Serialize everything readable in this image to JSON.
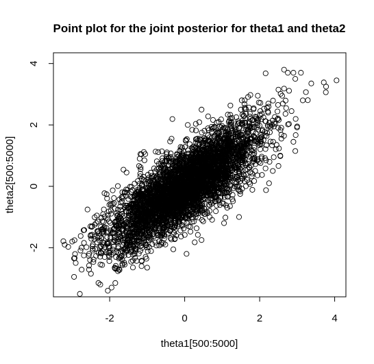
{
  "chart_data": {
    "type": "scatter",
    "title": "Point plot for the joint posterior for theta1 and theta2",
    "xlabel": "theta1[500:5000]",
    "ylabel": "theta2[500:5000]",
    "xlim": [
      -3.5,
      4.3
    ],
    "ylim": [
      -3.6,
      4.35
    ],
    "x_ticks": [
      -2,
      0,
      2,
      4
    ],
    "y_ticks": [
      -2,
      0,
      2,
      4
    ],
    "x_tick_labels": [
      "-2",
      "0",
      "2",
      "4"
    ],
    "y_tick_labels": [
      "-2",
      "0",
      "2",
      "4"
    ],
    "grid": false,
    "marker": "open-circle",
    "n_points": 4501,
    "correlation": 0.8,
    "theta1_mean": 0.0,
    "theta2_mean": 0.0,
    "theta1_sd": 1.0,
    "theta2_sd": 1.0,
    "points": [
      [
        4.05,
        3.45
      ],
      [
        2.9,
        3.7
      ],
      [
        3.1,
        3.7
      ],
      [
        2.65,
        3.8
      ],
      [
        2.75,
        3.7
      ],
      [
        2.95,
        3.5
      ],
      [
        2.5,
        3.15
      ],
      [
        2.6,
        2.95
      ],
      [
        3.15,
        2.8
      ],
      [
        2.85,
        2.45
      ],
      [
        3.0,
        1.95
      ],
      [
        2.9,
        1.45
      ],
      [
        2.95,
        1.15
      ],
      [
        2.45,
        1.35
      ],
      [
        1.95,
        2.95
      ],
      [
        1.6,
        2.8
      ],
      [
        1.5,
        2.5
      ],
      [
        -3.2,
        -1.9
      ],
      [
        -3.0,
        -1.8
      ],
      [
        -2.95,
        -2.35
      ],
      [
        -2.75,
        -2.0
      ],
      [
        -2.55,
        -2.2
      ],
      [
        -2.95,
        -2.95
      ],
      [
        -2.3,
        -3.15
      ],
      [
        -2.25,
        -3.2
      ],
      [
        -1.85,
        -3.15
      ],
      [
        -1.95,
        -3.3
      ],
      [
        -2.05,
        -3.4
      ],
      [
        -2.5,
        -2.85
      ],
      [
        -2.4,
        -1.25
      ],
      [
        -2.05,
        -1.05
      ],
      [
        -1.55,
        0.45
      ],
      [
        -1.6,
        -2.55
      ],
      [
        -1.15,
        -2.6
      ],
      [
        -1.0,
        -2.65
      ],
      [
        0.05,
        -2.2
      ],
      [
        0.45,
        -1.75
      ],
      [
        -1.2,
        0.9
      ],
      [
        -1.05,
        1.05
      ],
      [
        0.45,
        2.5
      ],
      [
        -0.35,
        1.55
      ],
      [
        1.0,
        -0.55
      ],
      [
        1.05,
        -1.2
      ],
      [
        2.35,
        0.5
      ],
      [
        2.55,
        1.0
      ],
      [
        2.25,
        0.1
      ],
      [
        1.45,
        -1.0
      ]
    ]
  }
}
